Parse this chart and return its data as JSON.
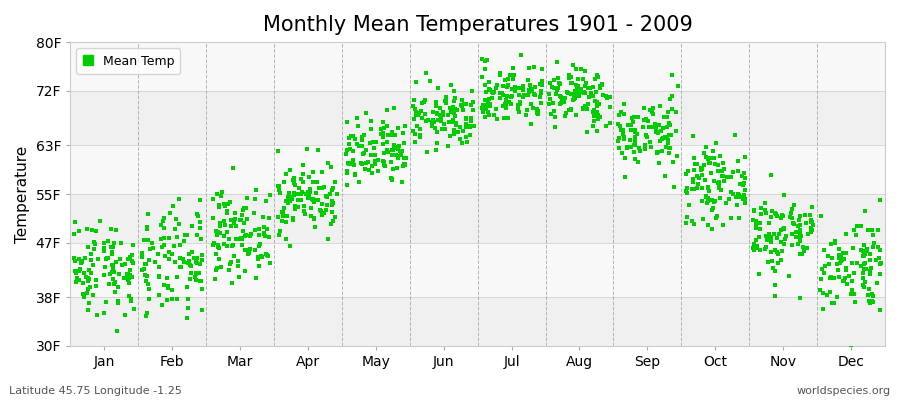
{
  "title": "Monthly Mean Temperatures 1901 - 2009",
  "ylabel": "Temperature",
  "bottom_left": "Latitude 45.75 Longitude -1.25",
  "bottom_right": "worldspecies.org",
  "legend_label": "Mean Temp",
  "dot_color": "#00cc00",
  "dot_size": 6,
  "ylim": [
    30,
    80
  ],
  "yticks": [
    30,
    38,
    47,
    55,
    63,
    72,
    80
  ],
  "ytick_labels": [
    "30F",
    "38F",
    "47F",
    "55F",
    "63F",
    "72F",
    "80F"
  ],
  "months": [
    "Jan",
    "Feb",
    "Mar",
    "Apr",
    "May",
    "Jun",
    "Jul",
    "Aug",
    "Sep",
    "Oct",
    "Nov",
    "Dec"
  ],
  "mean_temps_F": [
    43.0,
    43.5,
    48.5,
    54.5,
    61.5,
    67.5,
    71.5,
    71.0,
    65.0,
    56.5,
    48.5,
    43.5
  ],
  "std_temps_F": [
    4.0,
    4.5,
    3.5,
    3.0,
    3.0,
    2.5,
    2.5,
    2.5,
    3.0,
    3.0,
    3.5,
    4.0
  ],
  "n_years": 109,
  "background_color": "#ffffff",
  "band_colors": [
    "#f0f0f0",
    "#f8f8f8"
  ],
  "grid_color": "#999999",
  "title_fontsize": 15,
  "axis_fontsize": 10,
  "label_fontsize": 11,
  "fig_width": 9.0,
  "fig_height": 4.0
}
